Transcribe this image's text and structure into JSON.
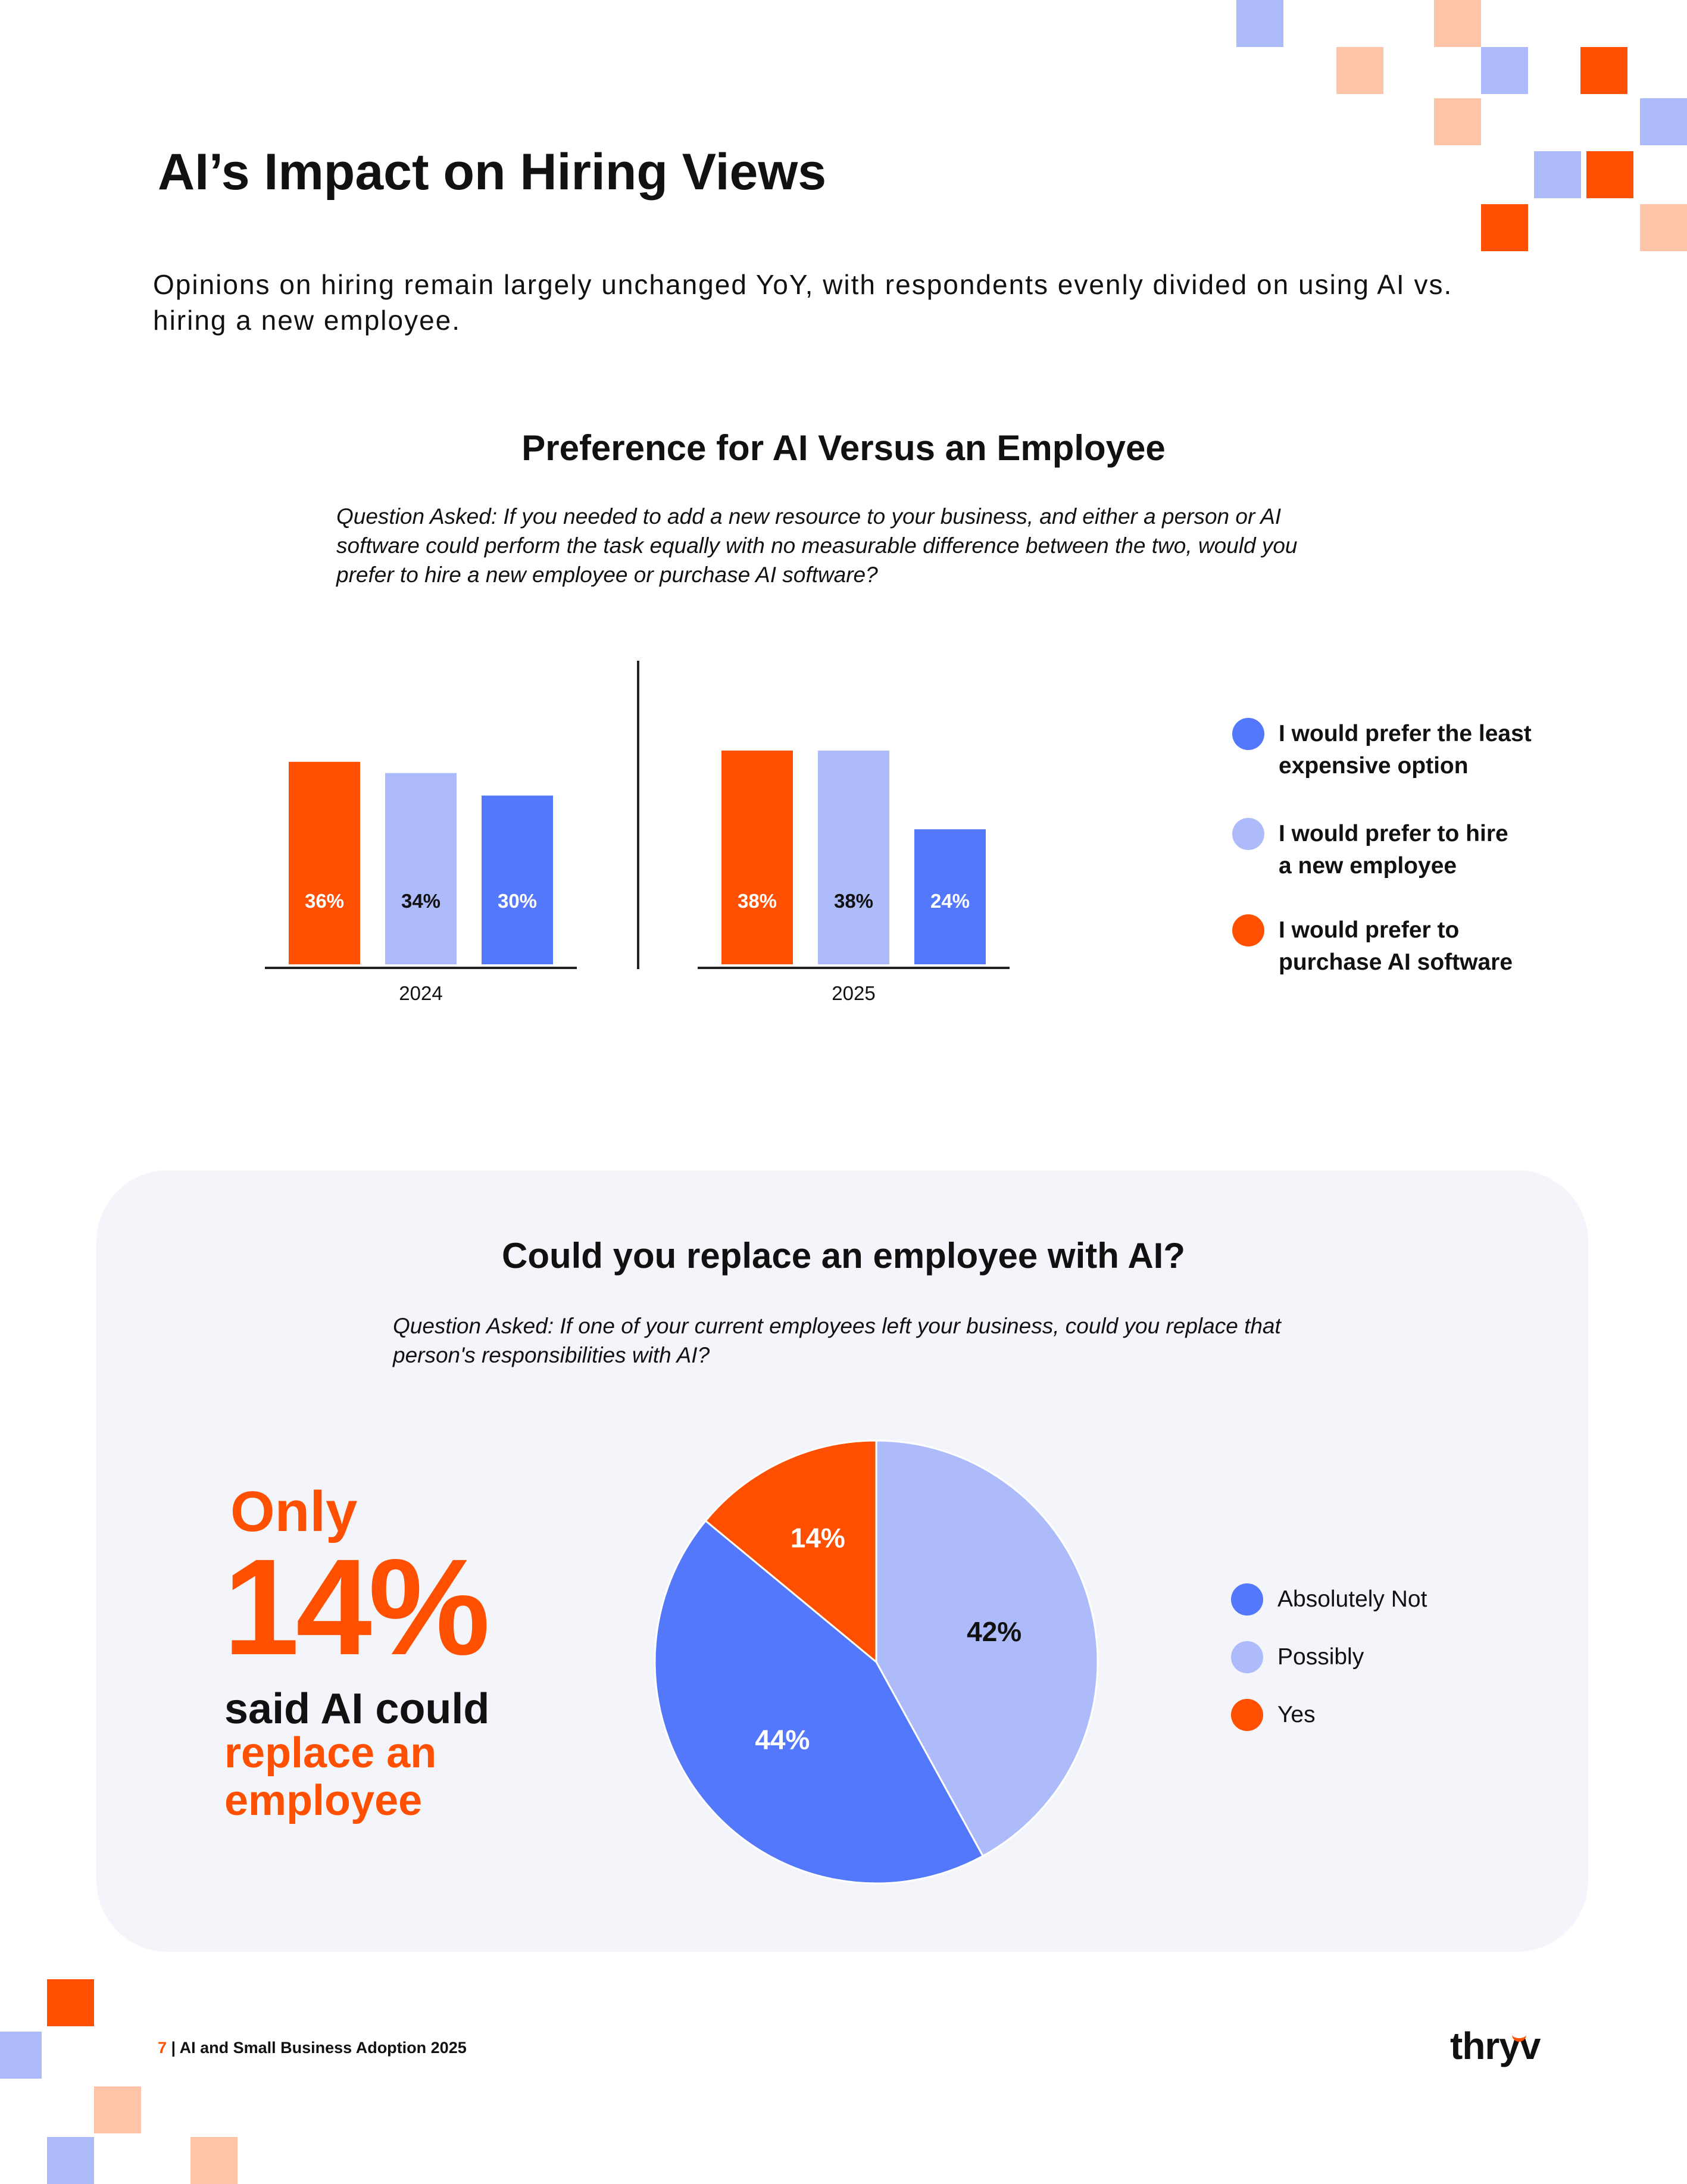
{
  "page": {
    "title": "AI’s Impact on Hiring Views",
    "subtitle": "Opinions on hiring remain largely unchanged YoY, with respondents evenly divided on using AI vs. hiring a new employee."
  },
  "section1": {
    "title": "Preference for AI Versus an Employee",
    "question": "Question Asked: If you needed to add a new resource to your business, and either a person or AI software could perform the task equally with no measurable difference between the two, would you prefer to hire a new employee or purchase AI software?",
    "legend": [
      {
        "label_line1": "I would prefer the least",
        "label_line2": "expensive option",
        "color": "#5478fb"
      },
      {
        "label_line1": "I would prefer to hire",
        "label_line2": "a new employee",
        "color": "#aebbfb"
      },
      {
        "label_line1": "I would prefer to",
        "label_line2": "purchase AI software",
        "color": "#fe5000"
      }
    ]
  },
  "section2": {
    "title": "Could you replace an employee with AI?",
    "question": "Question Asked: If one of your current employees left your business, could you replace that person's responsibilities with AI?",
    "callout": {
      "only": "Only",
      "number": "14%",
      "line1": "said AI could",
      "line2": "replace an",
      "line3": "employee"
    },
    "legend": [
      {
        "label": "Absolutely Not",
        "color": "#5478fb"
      },
      {
        "label": "Possibly",
        "color": "#aebbfb"
      },
      {
        "label": "Yes",
        "color": "#fe5000"
      }
    ]
  },
  "footer": {
    "page_number": "7",
    "separator": "|",
    "doc_title": "AI and Small Business Adoption 2025",
    "logo": "thryv"
  },
  "chart_data": [
    {
      "type": "bar",
      "categories": [
        "2024",
        "2025"
      ],
      "series": [
        {
          "name": "I would prefer to purchase AI software",
          "color": "#fe5000",
          "values": [
            36,
            38
          ],
          "labels": [
            "36%",
            "38%"
          ]
        },
        {
          "name": "I would prefer to hire a new employee",
          "color": "#aebbfb",
          "values": [
            34,
            38
          ],
          "labels": [
            "34%",
            "38%"
          ]
        },
        {
          "name": "I would prefer the least expensive option",
          "color": "#5478fb",
          "values": [
            30,
            24
          ],
          "labels": [
            "30%",
            "24%"
          ]
        }
      ],
      "ylim": [
        0,
        40
      ]
    },
    {
      "type": "pie",
      "slices": [
        {
          "name": "Possibly",
          "value": 42,
          "label": "42%",
          "color": "#aebbfb"
        },
        {
          "name": "Absolutely Not",
          "value": 44,
          "label": "44%",
          "color": "#5478fb"
        },
        {
          "name": "Yes",
          "value": 14,
          "label": "14%",
          "color": "#fe5000"
        }
      ]
    }
  ]
}
